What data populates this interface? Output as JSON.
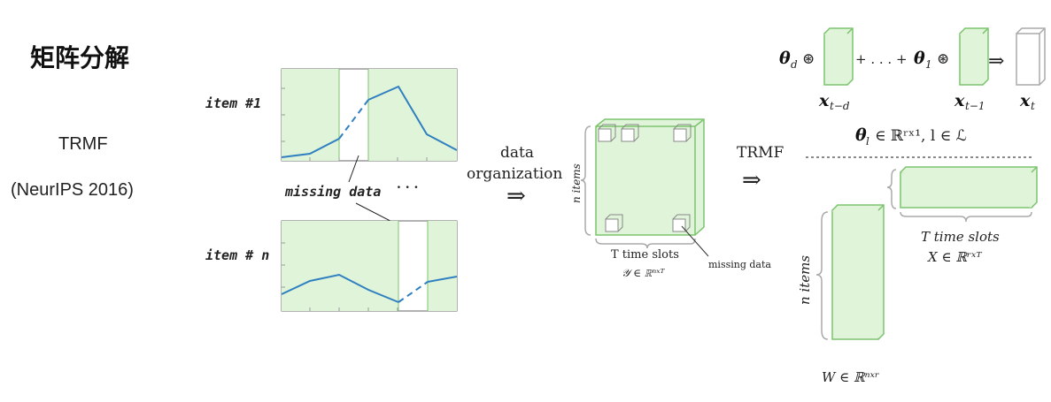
{
  "title": "矩阵分解",
  "method": "TRMF",
  "venue": "(NeurIPS 2016)",
  "labels": {
    "item1": "item #1",
    "itemn": "item # n",
    "missing": "missing data",
    "dots": ". . .",
    "data": "data",
    "organization": "organization",
    "arrow": "⇒",
    "trmf": "TRMF",
    "n_items": "n items",
    "t_slots": "T time slots",
    "missing_small": "missing data",
    "y_math": "𝒴 ∈ ℝⁿˣᵀ",
    "theta_d": "θ",
    "theta_d_sub": "d",
    "circ": "⊛",
    "plus_dots": "+ . . . +",
    "theta_1": "θ",
    "theta_1_sub": "1",
    "x_td": "x",
    "x_td_sub": "t−d",
    "x_t1": "x",
    "x_t1_sub": "t−1",
    "x_t": "x",
    "x_t_sub": "t",
    "theta_set": "θ",
    "theta_set_rest": "∈ ℝʳˣ¹, l ∈ ℒ",
    "theta_set_sub": "l",
    "x_math": "X ∈ ℝʳˣᵀ",
    "w_math": "W ∈ ℝⁿˣʳ",
    "n_items_w": "n items",
    "t_slots_x": "T time slots"
  },
  "colors": {
    "green_fill": "#dff4d9",
    "green_edge": "#7cc36e",
    "series_line": "#2f7fc1",
    "brace": "#aaaaaa"
  }
}
